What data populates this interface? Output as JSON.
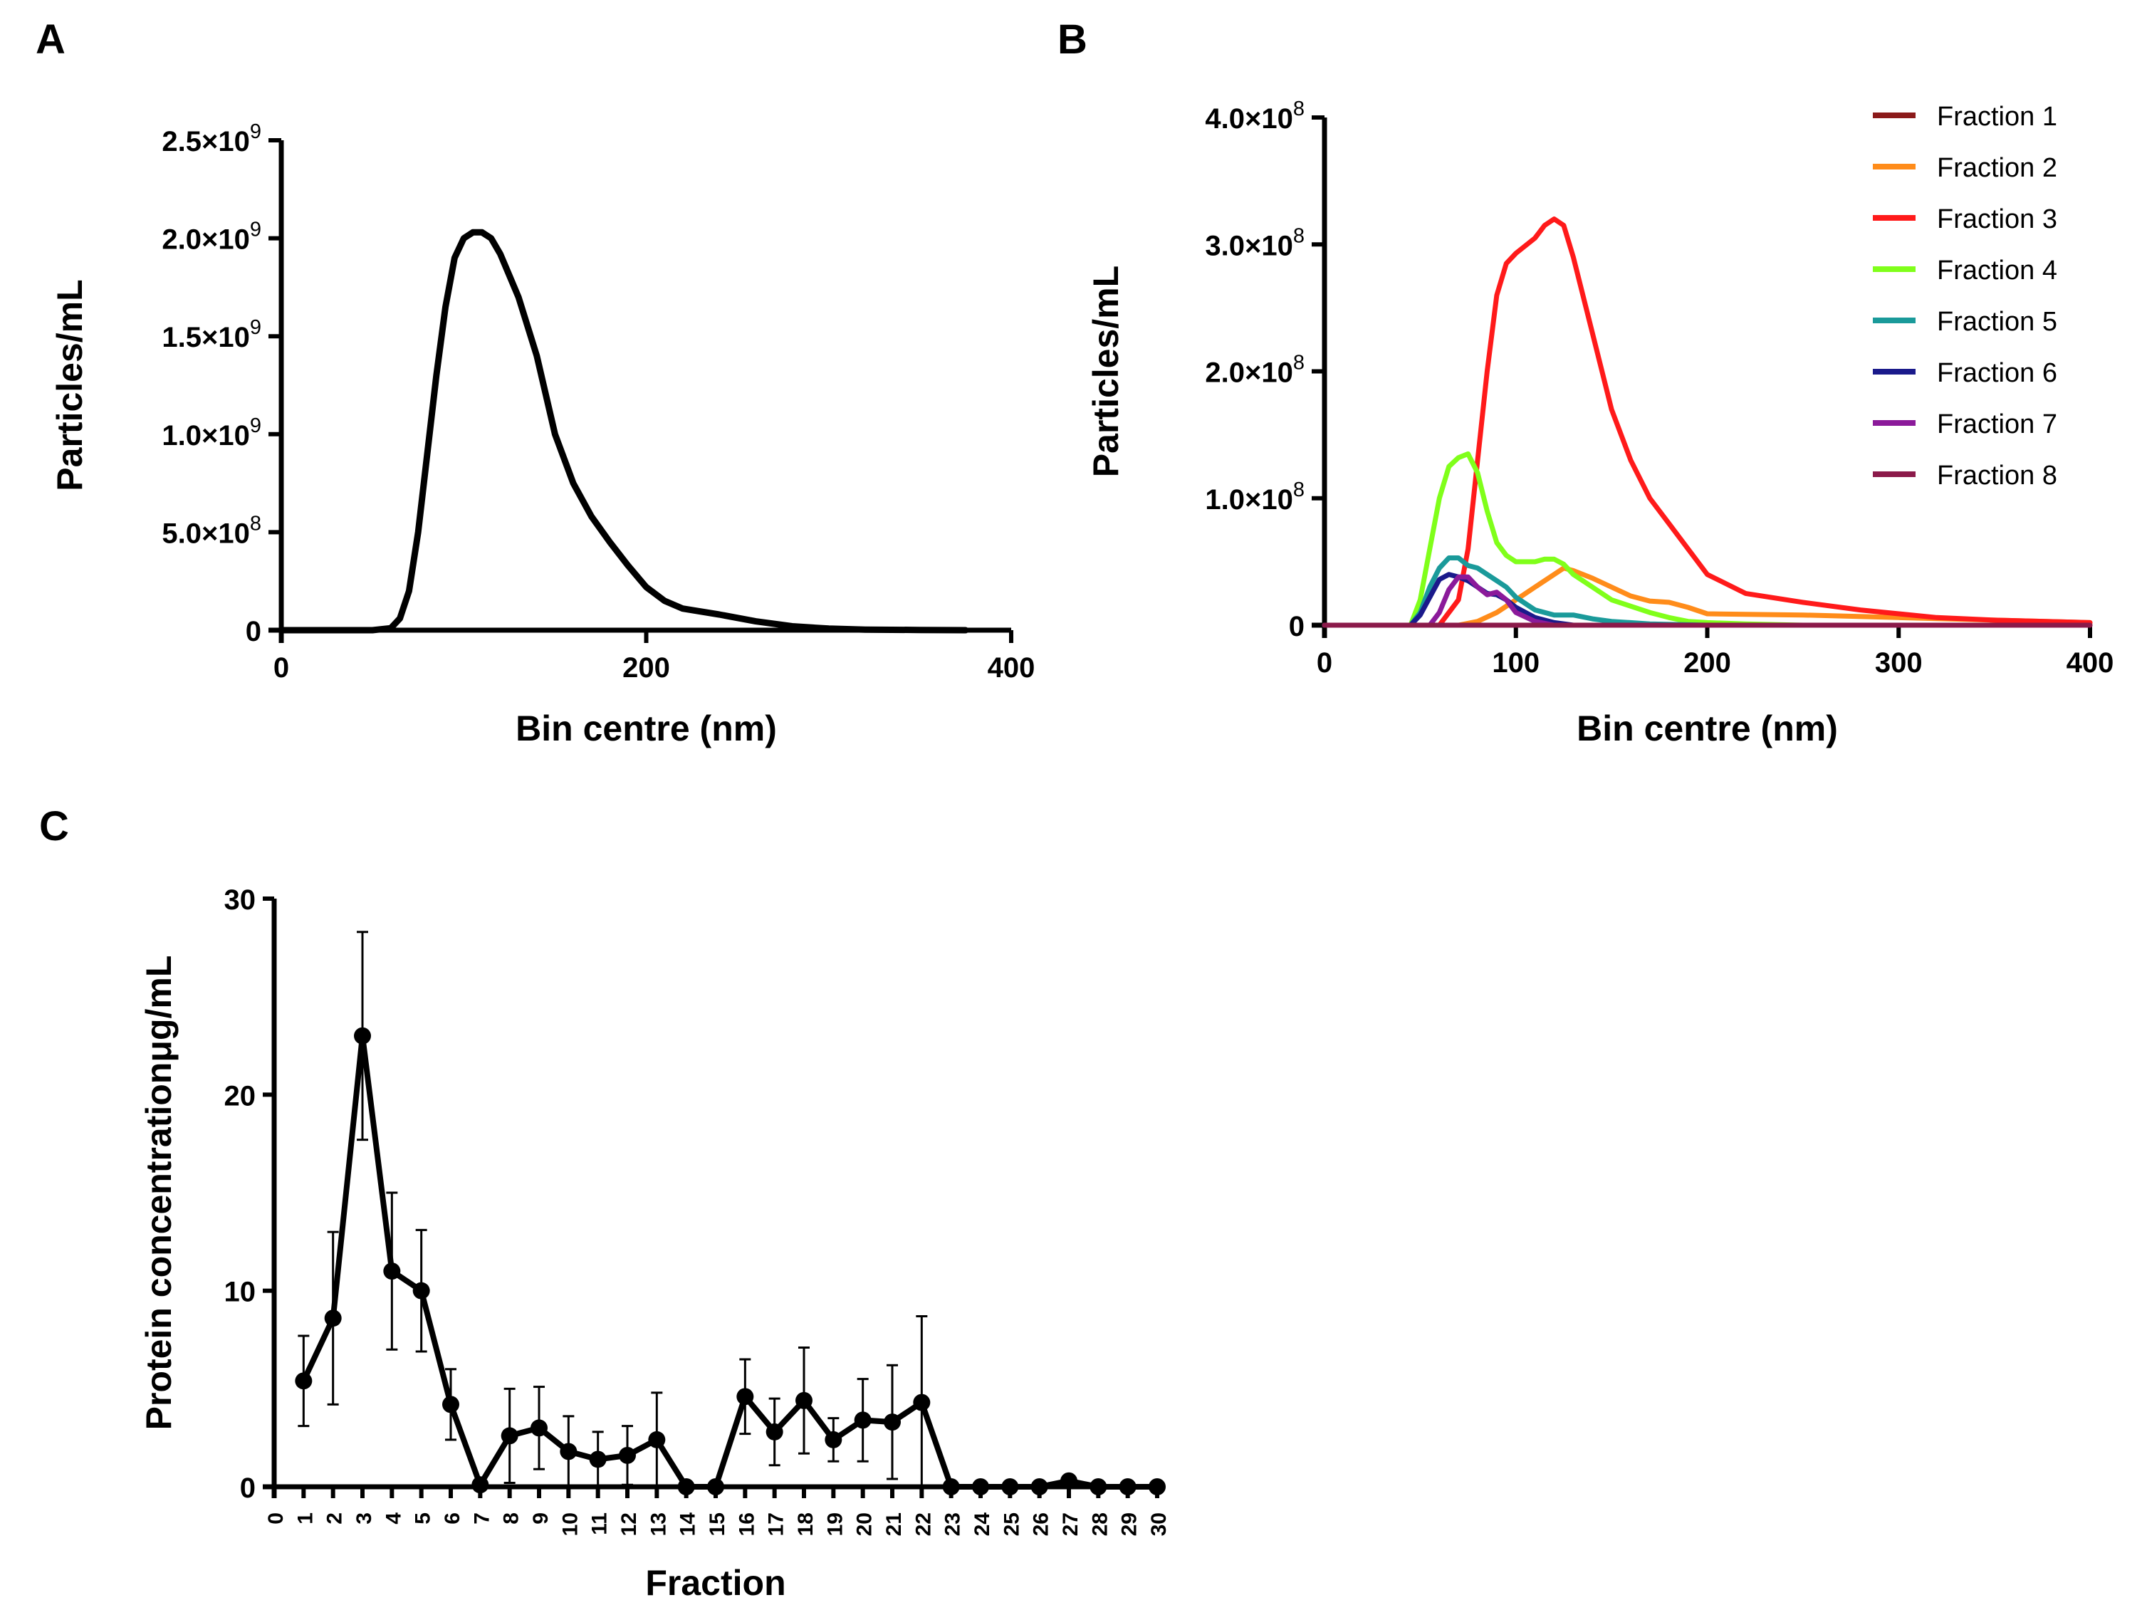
{
  "chart_data": [
    {
      "panel": "A",
      "type": "line",
      "xlabel": "Bin centre (nm)",
      "ylabel": "Particles/mL",
      "xlim": [
        0,
        400
      ],
      "ylim": [
        0,
        2500000000
      ],
      "xticks": [
        0,
        200,
        400
      ],
      "xtick_labels": [
        "0",
        "200",
        "400"
      ],
      "yticks": [
        0,
        500000000,
        1000000000,
        1500000000,
        2000000000,
        2500000000
      ],
      "ytick_labels": [
        {
          "mant": "0",
          "exp": ""
        },
        {
          "mant": "5.0×10",
          "exp": "8"
        },
        {
          "mant": "1.0×10",
          "exp": "9"
        },
        {
          "mant": "1.5×10",
          "exp": "9"
        },
        {
          "mant": "2.0×10",
          "exp": "9"
        },
        {
          "mant": "2.5×10",
          "exp": "9"
        }
      ],
      "grid": false,
      "series": [
        {
          "color": "#000000",
          "x": [
            0,
            50,
            60,
            65,
            70,
            75,
            80,
            85,
            90,
            95,
            100,
            105,
            110,
            115,
            120,
            130,
            140,
            150,
            160,
            170,
            180,
            190,
            200,
            210,
            220,
            240,
            260,
            280,
            300,
            320,
            350,
            375
          ],
          "y": [
            0,
            0,
            10000000,
            60000000,
            200000000,
            500000000,
            900000000,
            1300000000,
            1650000000,
            1900000000,
            2000000000,
            2030000000,
            2030000000,
            2000000000,
            1920000000,
            1700000000,
            1400000000,
            1000000000,
            750000000,
            580000000,
            450000000,
            330000000,
            220000000,
            150000000,
            110000000,
            80000000,
            45000000,
            20000000,
            8000000,
            3000000,
            1000000,
            0
          ]
        }
      ]
    },
    {
      "panel": "B",
      "type": "line",
      "xlabel": "Bin centre (nm)",
      "ylabel": "Particles/mL",
      "xlim": [
        0,
        400
      ],
      "ylim": [
        0,
        400000000
      ],
      "xticks": [
        0,
        100,
        200,
        300,
        400
      ],
      "xtick_labels": [
        "0",
        "100",
        "200",
        "300",
        "400"
      ],
      "yticks": [
        0,
        100000000,
        200000000,
        300000000,
        400000000
      ],
      "ytick_labels": [
        {
          "mant": "0",
          "exp": ""
        },
        {
          "mant": "1.0×10",
          "exp": "8"
        },
        {
          "mant": "2.0×10",
          "exp": "8"
        },
        {
          "mant": "3.0×10",
          "exp": "8"
        },
        {
          "mant": "4.0×10",
          "exp": "8"
        }
      ],
      "grid": false,
      "legend_position": "top-right",
      "series": [
        {
          "name": "Fraction 1",
          "color": "#8b1a1a",
          "x": [
            0,
            400
          ],
          "y": [
            0,
            0
          ]
        },
        {
          "name": "Fraction 2",
          "color": "#ff8c1a",
          "x": [
            0,
            70,
            80,
            90,
            100,
            110,
            120,
            125,
            130,
            140,
            150,
            160,
            170,
            180,
            190,
            200,
            250,
            300,
            350,
            400
          ],
          "y": [
            0,
            0,
            3000000,
            10000000,
            20000000,
            30000000,
            40000000,
            45000000,
            43000000,
            37000000,
            30000000,
            23000000,
            19000000,
            18000000,
            14000000,
            9000000,
            8000000,
            6000000,
            4000000,
            2000000
          ]
        },
        {
          "name": "Fraction 3",
          "color": "#ff1a1a",
          "x": [
            0,
            60,
            70,
            75,
            80,
            85,
            90,
            95,
            100,
            110,
            115,
            120,
            125,
            130,
            140,
            150,
            160,
            170,
            180,
            190,
            200,
            220,
            250,
            280,
            300,
            320,
            350,
            400
          ],
          "y": [
            0,
            0,
            20000000,
            60000000,
            130000000,
            200000000,
            260000000,
            285000000,
            293000000,
            305000000,
            315000000,
            320000000,
            315000000,
            290000000,
            230000000,
            170000000,
            130000000,
            100000000,
            80000000,
            60000000,
            40000000,
            25000000,
            18000000,
            12000000,
            9000000,
            6000000,
            4000000,
            2000000
          ]
        },
        {
          "name": "Fraction 4",
          "color": "#80ff1a",
          "x": [
            0,
            45,
            50,
            55,
            60,
            65,
            70,
            75,
            80,
            85,
            90,
            95,
            100,
            110,
            115,
            120,
            125,
            130,
            140,
            150,
            160,
            170,
            180,
            190,
            200,
            220,
            250
          ],
          "y": [
            0,
            0,
            20000000,
            60000000,
            100000000,
            125000000,
            132000000,
            135000000,
            120000000,
            90000000,
            65000000,
            55000000,
            50000000,
            50000000,
            52000000,
            52000000,
            48000000,
            40000000,
            30000000,
            20000000,
            15000000,
            10000000,
            6000000,
            3000000,
            2000000,
            1000000,
            0
          ]
        },
        {
          "name": "Fraction 5",
          "color": "#1a9a9a",
          "x": [
            0,
            45,
            50,
            55,
            60,
            65,
            70,
            75,
            80,
            85,
            90,
            95,
            100,
            110,
            120,
            130,
            140,
            150,
            170,
            200
          ],
          "y": [
            0,
            0,
            10000000,
            30000000,
            45000000,
            53000000,
            53000000,
            47000000,
            45000000,
            40000000,
            35000000,
            30000000,
            22000000,
            12000000,
            8000000,
            8000000,
            5000000,
            3000000,
            1000000,
            0
          ]
        },
        {
          "name": "Fraction 6",
          "color": "#1a1a8b",
          "x": [
            0,
            45,
            50,
            55,
            60,
            65,
            70,
            75,
            80,
            85,
            90,
            95,
            100,
            110,
            120,
            130
          ],
          "y": [
            0,
            0,
            8000000,
            22000000,
            36000000,
            40000000,
            38000000,
            35000000,
            30000000,
            25000000,
            24000000,
            20000000,
            14000000,
            6000000,
            2000000,
            0
          ]
        },
        {
          "name": "Fraction 7",
          "color": "#8b1a9a",
          "x": [
            0,
            55,
            60,
            65,
            70,
            75,
            80,
            85,
            90,
            95,
            100,
            110,
            120
          ],
          "y": [
            0,
            0,
            10000000,
            28000000,
            38000000,
            38000000,
            30000000,
            24000000,
            26000000,
            20000000,
            10000000,
            3000000,
            0
          ]
        },
        {
          "name": "Fraction 8",
          "color": "#8b1a4a",
          "x": [
            0,
            400
          ],
          "y": [
            0,
            0
          ]
        }
      ]
    },
    {
      "panel": "C",
      "type": "line",
      "xlabel": "Fraction",
      "ylabel": "Protein concentrationμg/mL",
      "xlim": [
        0,
        30
      ],
      "ylim": [
        0,
        30
      ],
      "xticks": [
        0,
        1,
        2,
        3,
        4,
        5,
        6,
        7,
        8,
        9,
        10,
        11,
        12,
        13,
        14,
        15,
        16,
        17,
        18,
        19,
        20,
        21,
        22,
        23,
        24,
        25,
        26,
        27,
        28,
        29,
        30
      ],
      "xtick_labels": [
        "0",
        "1",
        "2",
        "3",
        "4",
        "5",
        "6",
        "7",
        "8",
        "9",
        "10",
        "11",
        "12",
        "13",
        "14",
        "15",
        "16",
        "17",
        "18",
        "19",
        "20",
        "21",
        "22",
        "23",
        "24",
        "25",
        "26",
        "27",
        "28",
        "29",
        "30"
      ],
      "yticks": [
        0,
        10,
        20,
        30
      ],
      "ytick_labels": [
        "0",
        "10",
        "20",
        "30"
      ],
      "grid": false,
      "series": [
        {
          "color": "#000000",
          "x": [
            1,
            2,
            3,
            4,
            5,
            6,
            7,
            8,
            9,
            10,
            11,
            12,
            13,
            14,
            15,
            16,
            17,
            18,
            19,
            20,
            21,
            22,
            23,
            24,
            25,
            26,
            27,
            28,
            29,
            30
          ],
          "y": [
            5.4,
            8.6,
            23.0,
            11.0,
            10.0,
            4.2,
            0.1,
            2.6,
            3.0,
            1.8,
            1.4,
            1.6,
            2.4,
            0.0,
            0.0,
            4.6,
            2.8,
            4.4,
            2.4,
            3.4,
            3.3,
            4.3,
            0.0,
            0.0,
            0.0,
            0.0,
            0.3,
            0.0,
            0.0,
            0.0
          ],
          "err": [
            2.3,
            4.4,
            5.3,
            4.0,
            3.1,
            1.8,
            0.0,
            2.4,
            2.1,
            1.8,
            1.4,
            1.5,
            2.4,
            0.0,
            0.0,
            1.9,
            1.7,
            2.7,
            1.1,
            2.1,
            2.9,
            4.4,
            0.0,
            0.0,
            0.0,
            0.0,
            0.0,
            0.0,
            0.0,
            0.0
          ]
        }
      ]
    }
  ],
  "panel_labels": [
    "A",
    "B",
    "C"
  ]
}
